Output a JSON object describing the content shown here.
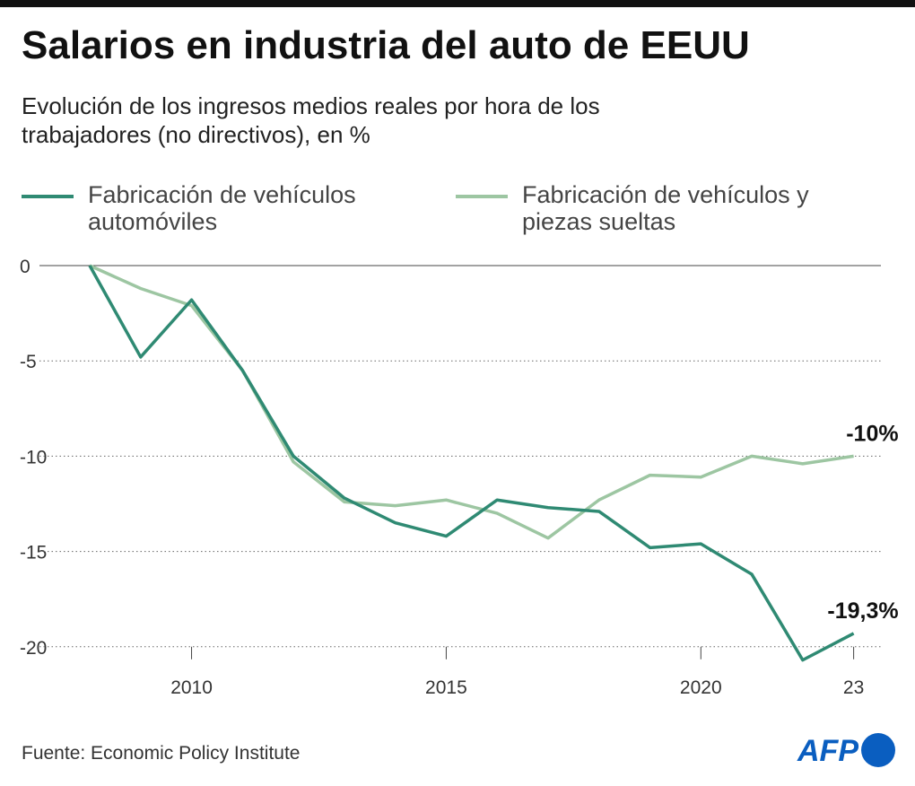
{
  "chart_data": {
    "type": "line",
    "title": "Salarios en industria del auto de EEUU",
    "subtitle": "Evolución de los ingresos medios reales por hora de los trabajadores (no directivos), en %",
    "source": "Fuente:  Economic Policy Institute",
    "logo": "AFP",
    "x": [
      2008,
      2009,
      2010,
      2011,
      2012,
      2013,
      2014,
      2015,
      2016,
      2017,
      2018,
      2019,
      2020,
      2021,
      2022,
      2023
    ],
    "series": [
      {
        "name": "Fabricación de vehículos automóviles",
        "color": "#2f8a73",
        "values": [
          0,
          -4.8,
          -1.8,
          -5.5,
          -10.0,
          -12.2,
          -13.5,
          -14.2,
          -12.3,
          -12.7,
          -12.9,
          -14.8,
          -14.6,
          -16.2,
          -20.7,
          -19.3
        ],
        "value_labels": [
          null,
          null,
          null,
          null,
          null,
          null,
          null,
          null,
          null,
          null,
          null,
          null,
          null,
          null,
          null,
          "-19,3%"
        ]
      },
      {
        "name": "Fabricación de vehículos y piezas sueltas",
        "color": "#9dc6a2",
        "values": [
          0,
          -1.2,
          -2.1,
          -5.5,
          -10.3,
          -12.4,
          -12.6,
          -12.3,
          -13.0,
          -14.3,
          -12.3,
          -11.0,
          -11.1,
          -10.0,
          -10.4,
          -10.0
        ],
        "value_labels": [
          null,
          null,
          null,
          null,
          null,
          null,
          null,
          null,
          null,
          null,
          null,
          null,
          null,
          null,
          null,
          "-10%"
        ]
      }
    ],
    "xlim": [
      2008,
      2023.5
    ],
    "ylim": [
      -21,
      0
    ],
    "xticks": [
      2010,
      2015,
      2020,
      {
        "value": 2023,
        "label": "23"
      }
    ],
    "yticks": [
      0,
      -5,
      -10,
      -15,
      -20
    ],
    "grid": true
  }
}
